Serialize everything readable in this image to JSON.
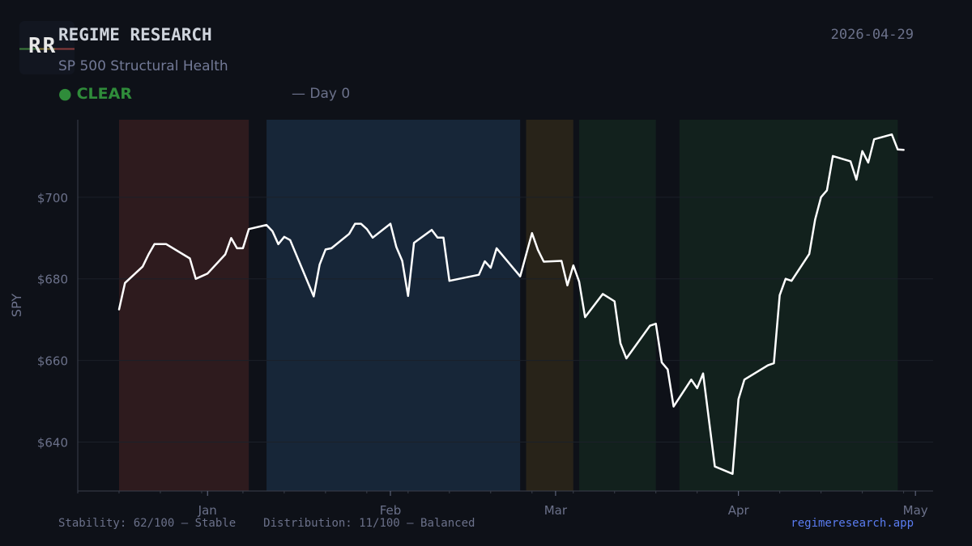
{
  "header": {
    "logo_text": "RR",
    "title": "REGIME RESEARCH",
    "subtitle": "SP 500 Structural Health",
    "date": "2026-04-29",
    "status_label": "CLEAR",
    "status_color": "#2f8c3a",
    "day_label": "— Day 0"
  },
  "footer": {
    "stability": "Stability: 62/100 — Stable",
    "distribution": "Distribution: 11/100 — Balanced",
    "site": "regimeresearch.app"
  },
  "colors": {
    "background": "#0e1118",
    "line": "#ffffff",
    "brand_link": "#5a7cf0",
    "status_clear": "#2f8c3a"
  },
  "chart_data": {
    "type": "line",
    "xlabel": "",
    "ylabel": "SPY",
    "x_ticks": [
      {
        "label": "Jan",
        "date": "2026-01-01"
      },
      {
        "label": "Feb",
        "date": "2026-02-01"
      },
      {
        "label": "Mar",
        "date": "2026-03-01"
      },
      {
        "label": "Apr",
        "date": "2026-04-01"
      },
      {
        "label": "May",
        "date": "2026-05-01"
      }
    ],
    "y_ticks": [
      {
        "label": "$640",
        "value": 640
      },
      {
        "label": "$660",
        "value": 660
      },
      {
        "label": "$680",
        "value": 680
      },
      {
        "label": "$700",
        "value": 700
      }
    ],
    "xlim": [
      "2025-12-10",
      "2026-05-04"
    ],
    "ylim": [
      628,
      719
    ],
    "grid": true,
    "regimes": [
      {
        "start": "2025-12-17",
        "end": "2026-01-08",
        "color": "#2e1b1e"
      },
      {
        "start": "2026-01-11",
        "end": "2026-02-23",
        "color": "#172638"
      },
      {
        "start": "2026-02-24",
        "end": "2026-03-04",
        "color": "#282319"
      },
      {
        "start": "2026-03-05",
        "end": "2026-03-18",
        "color": "#12211d"
      },
      {
        "start": "2026-03-22",
        "end": "2026-04-28",
        "color": "#12211d"
      }
    ],
    "series": [
      {
        "values": [
          [
            "2025-12-17",
            672.5
          ],
          [
            "2025-12-18",
            679
          ],
          [
            "2025-12-21",
            683
          ],
          [
            "2025-12-22",
            686
          ],
          [
            "2025-12-23",
            688.5
          ],
          [
            "2025-12-25",
            688.5
          ],
          [
            "2025-12-29",
            685
          ],
          [
            "2025-12-30",
            680
          ],
          [
            "2026-01-01",
            681.3
          ],
          [
            "2026-01-04",
            686
          ],
          [
            "2026-01-05",
            690
          ],
          [
            "2026-01-06",
            687.5
          ],
          [
            "2026-01-07",
            687.5
          ],
          [
            "2026-01-08",
            692.2
          ],
          [
            "2026-01-11",
            693.2
          ],
          [
            "2026-01-12",
            691.7
          ],
          [
            "2026-01-13",
            688.5
          ],
          [
            "2026-01-14",
            690.3
          ],
          [
            "2026-01-15",
            689.5
          ],
          [
            "2026-01-19",
            675.7
          ],
          [
            "2026-01-20",
            683.5
          ],
          [
            "2026-01-21",
            687.2
          ],
          [
            "2026-01-22",
            687.5
          ],
          [
            "2026-01-25",
            691
          ],
          [
            "2026-01-26",
            693.5
          ],
          [
            "2026-01-27",
            693.5
          ],
          [
            "2026-01-28",
            692.2
          ],
          [
            "2026-01-29",
            690.1
          ],
          [
            "2026-02-01",
            693.5
          ],
          [
            "2026-02-02",
            687.8
          ],
          [
            "2026-02-03",
            684.4
          ],
          [
            "2026-02-04",
            675.8
          ],
          [
            "2026-02-05",
            688.8
          ],
          [
            "2026-02-08",
            692
          ],
          [
            "2026-02-09",
            690.1
          ],
          [
            "2026-02-10",
            690.1
          ],
          [
            "2026-02-11",
            679.5
          ],
          [
            "2026-02-16",
            681
          ],
          [
            "2026-02-17",
            684.3
          ],
          [
            "2026-02-18",
            682.7
          ],
          [
            "2026-02-19",
            687.5
          ],
          [
            "2026-02-23",
            680.6
          ],
          [
            "2026-02-25",
            691.2
          ],
          [
            "2026-02-26",
            687.1
          ],
          [
            "2026-02-27",
            684.2
          ],
          [
            "2026-03-02",
            684.4
          ],
          [
            "2026-03-03",
            678.4
          ],
          [
            "2026-03-04",
            683.3
          ],
          [
            "2026-03-05",
            679.3
          ],
          [
            "2026-03-06",
            670.6
          ],
          [
            "2026-03-09",
            676.3
          ],
          [
            "2026-03-11",
            674.5
          ],
          [
            "2026-03-12",
            664.2
          ],
          [
            "2026-03-13",
            660.5
          ],
          [
            "2026-03-17",
            668.5
          ],
          [
            "2026-03-18",
            669.0
          ],
          [
            "2026-03-19",
            659.5
          ],
          [
            "2026-03-20",
            657.8
          ],
          [
            "2026-03-21",
            648.7
          ],
          [
            "2026-03-24",
            655.3
          ],
          [
            "2026-03-25",
            653.2
          ],
          [
            "2026-03-26",
            656.8
          ],
          [
            "2026-03-28",
            634
          ],
          [
            "2026-03-31",
            632.2
          ],
          [
            "2026-04-01",
            650.5
          ],
          [
            "2026-04-02",
            655.3
          ],
          [
            "2026-04-06",
            658.8
          ],
          [
            "2026-04-07",
            659.3
          ],
          [
            "2026-04-08",
            676
          ],
          [
            "2026-04-09",
            680
          ],
          [
            "2026-04-10",
            679.5
          ],
          [
            "2026-04-13",
            686.1
          ],
          [
            "2026-04-14",
            694.5
          ],
          [
            "2026-04-15",
            700
          ],
          [
            "2026-04-16",
            701.7
          ],
          [
            "2026-04-17",
            710.1
          ],
          [
            "2026-04-20",
            708.8
          ],
          [
            "2026-04-21",
            704.3
          ],
          [
            "2026-04-22",
            711.3
          ],
          [
            "2026-04-23",
            708.5
          ],
          [
            "2026-04-24",
            714.2
          ],
          [
            "2026-04-27",
            715.4
          ],
          [
            "2026-04-28",
            711.7
          ],
          [
            "2026-04-29",
            711.6
          ]
        ]
      }
    ]
  }
}
